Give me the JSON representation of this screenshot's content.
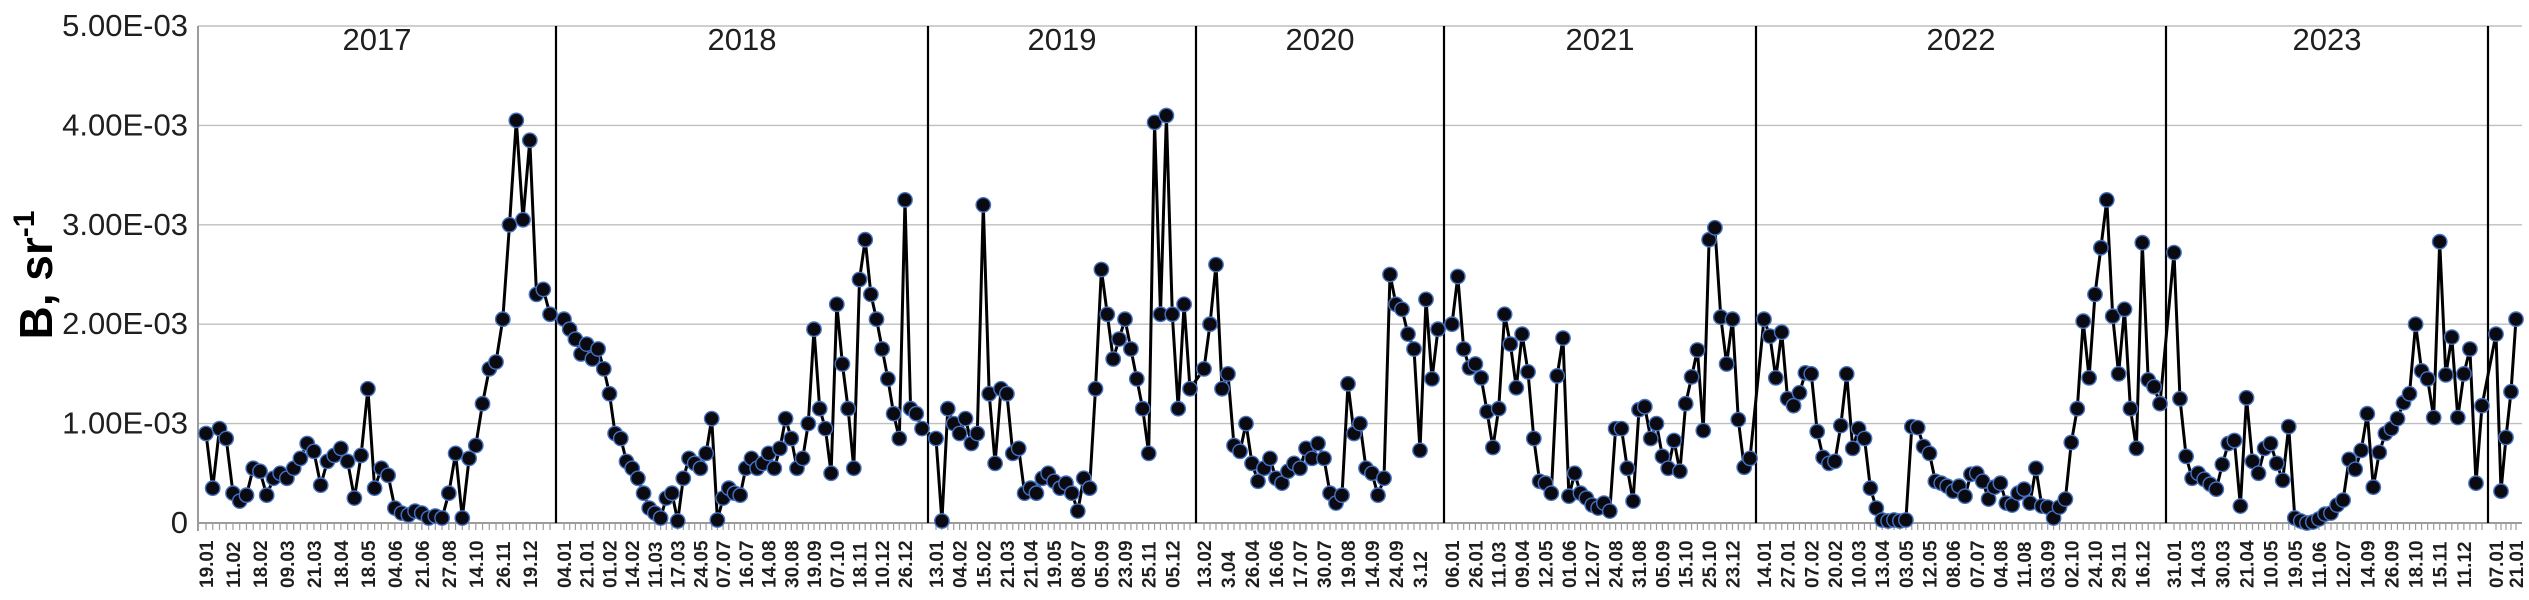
{
  "chart_data": {
    "type": "line",
    "title": "",
    "ylabel": "B, sr",
    "ylabel_superscript": "-1",
    "xlabel": "",
    "legend": "none",
    "grid": "horizontal",
    "value_unit": "1e-3",
    "ylim": [
      "0",
      "5.00E-03"
    ],
    "y_ticks": [
      "5.00E-03",
      "4.00E-03",
      "3.00E-03",
      "2.00E-03",
      "1.00E-03",
      "0"
    ],
    "line_color": "#000000",
    "marker_fill": "#0a0a10",
    "marker_stroke": "#4472c4",
    "grid_color": "#bfbfbf",
    "axis_color": "#9c9c9c",
    "separator_color": "#000000",
    "text_color": "#1f1f1f",
    "years": [
      {
        "label": "2017",
        "x_labels": [
          "19.01",
          "11.02",
          "18.02",
          "09.03",
          "21.03",
          "18.04",
          "18.05",
          "04.06",
          "21.06",
          "27.08",
          "14.10",
          "26.11",
          "19.12"
        ],
        "values": [
          0.9,
          0.35,
          0.95,
          0.85,
          0.3,
          0.22,
          0.28,
          0.55,
          0.52,
          0.28,
          0.45,
          0.5,
          0.45,
          0.55,
          0.65,
          0.8,
          0.72,
          0.38,
          0.62,
          0.68,
          0.75,
          0.62,
          0.25,
          0.68,
          1.35,
          0.35,
          0.55,
          0.48,
          0.15,
          0.1,
          0.08,
          0.12,
          0.1,
          0.05,
          0.07,
          0.05,
          0.3,
          0.7,
          0.05,
          0.65,
          0.78,
          1.2,
          1.55,
          1.62,
          2.05,
          3.0,
          4.05,
          3.05,
          3.85,
          2.3,
          2.35,
          2.1
        ]
      },
      {
        "label": "2018",
        "x_labels": [
          "04.01",
          "21.01",
          "01.02",
          "14.02",
          "11.03",
          "17.03",
          "24.05",
          "07.07",
          "16.07",
          "14.08",
          "30.08",
          "19.09",
          "07.10",
          "18.11",
          "10.12",
          "26.12"
        ],
        "values": [
          2.05,
          1.95,
          1.85,
          1.7,
          1.8,
          1.65,
          1.75,
          1.55,
          1.3,
          0.9,
          0.85,
          0.62,
          0.55,
          0.45,
          0.3,
          0.15,
          0.1,
          0.05,
          0.25,
          0.3,
          0.02,
          0.45,
          0.65,
          0.6,
          0.55,
          0.7,
          1.05,
          0.03,
          0.25,
          0.35,
          0.3,
          0.28,
          0.55,
          0.65,
          0.55,
          0.6,
          0.7,
          0.55,
          0.75,
          1.05,
          0.85,
          0.55,
          0.65,
          1.0,
          1.95,
          1.15,
          0.95,
          0.5,
          2.2,
          1.6,
          1.15,
          0.55,
          2.45,
          2.85,
          2.3,
          2.05,
          1.75,
          1.45,
          1.1,
          0.85,
          3.25,
          1.15,
          1.1,
          0.95
        ]
      },
      {
        "label": "2019",
        "x_labels": [
          "13.01",
          "04.02",
          "15.02",
          "21.03",
          "21.04",
          "19.05",
          "08.07",
          "05.09",
          "23.09",
          "25.11",
          "05.12"
        ],
        "values": [
          0.85,
          0.02,
          1.15,
          1.0,
          0.9,
          1.05,
          0.8,
          0.9,
          3.2,
          1.3,
          0.6,
          1.35,
          1.3,
          0.7,
          0.75,
          0.3,
          0.35,
          0.3,
          0.45,
          0.5,
          0.42,
          0.35,
          0.4,
          0.3,
          0.12,
          0.45,
          0.35,
          1.35,
          2.55,
          2.1,
          1.65,
          1.85,
          2.05,
          1.75,
          1.45,
          1.15,
          0.7,
          4.03,
          2.1,
          4.1,
          2.1,
          1.15,
          2.2,
          1.35
        ]
      },
      {
        "label": "2020",
        "x_labels": [
          "13.02",
          "3.04",
          "26.04",
          "16.06",
          "17.07",
          "30.07",
          "19.08",
          "14.09",
          "24.09",
          "3.12"
        ],
        "values": [
          1.55,
          2.0,
          2.6,
          1.35,
          1.5,
          0.78,
          0.72,
          1.0,
          0.6,
          0.42,
          0.55,
          0.65,
          0.45,
          0.4,
          0.52,
          0.6,
          0.55,
          0.75,
          0.65,
          0.8,
          0.65,
          0.3,
          0.2,
          0.28,
          1.4,
          0.9,
          1.0,
          0.55,
          0.5,
          0.28,
          0.45,
          2.5,
          2.2,
          2.15,
          1.9,
          1.75,
          0.73,
          2.25,
          1.45,
          1.95
        ]
      },
      {
        "label": "2021",
        "x_labels": [
          "06.01",
          "26.01",
          "11.03",
          "09.04",
          "12.05",
          "01.06",
          "12.07",
          "24.08",
          "31.08",
          "05.09",
          "15.10",
          "25.10",
          "23.12"
        ],
        "values": [
          2.0,
          2.48,
          1.75,
          1.56,
          1.6,
          1.46,
          1.12,
          0.76,
          1.15,
          2.1,
          1.8,
          1.36,
          1.9,
          1.52,
          0.85,
          0.42,
          0.4,
          0.3,
          1.48,
          1.86,
          0.27,
          0.5,
          0.3,
          0.25,
          0.18,
          0.15,
          0.2,
          0.12,
          0.95,
          0.95,
          0.55,
          0.22,
          1.14,
          1.17,
          0.85,
          1.0,
          0.67,
          0.55,
          0.83,
          0.52,
          1.2,
          1.47,
          1.74,
          0.93,
          2.85,
          2.97,
          2.07,
          1.6,
          2.05,
          1.04,
          0.56,
          0.65
        ]
      },
      {
        "label": "2022",
        "x_labels": [
          "14.01",
          "27.01",
          "07.02",
          "20.02",
          "10.03",
          "13.04",
          "03.05",
          "12.05",
          "08.06",
          "07.07",
          "04.08",
          "11.08",
          "03.09",
          "02.10",
          "24.10",
          "29.11",
          "16.12"
        ],
        "values": [
          2.05,
          1.88,
          1.46,
          1.92,
          1.25,
          1.18,
          1.31,
          1.51,
          1.5,
          0.92,
          0.66,
          0.6,
          0.62,
          0.98,
          1.5,
          0.75,
          0.95,
          0.85,
          0.35,
          0.15,
          0.03,
          0.02,
          0.03,
          0.02,
          0.03,
          0.97,
          0.96,
          0.77,
          0.7,
          0.42,
          0.4,
          0.37,
          0.32,
          0.37,
          0.27,
          0.49,
          0.5,
          0.42,
          0.24,
          0.36,
          0.4,
          0.2,
          0.18,
          0.3,
          0.34,
          0.2,
          0.55,
          0.17,
          0.16,
          0.05,
          0.16,
          0.24,
          0.81,
          1.15,
          2.03,
          1.46,
          2.3,
          2.77,
          3.25,
          2.08,
          1.5,
          2.15,
          1.15,
          0.75,
          2.82,
          1.44,
          1.37,
          1.2
        ]
      },
      {
        "label": "2023",
        "x_labels": [
          "31.01",
          "14.03",
          "30.03",
          "21.04",
          "10.05",
          "19.05",
          "11.06",
          "12.07",
          "14.09",
          "26.09",
          "18.10",
          "15.11",
          "11.12"
        ],
        "values": [
          2.72,
          1.25,
          0.67,
          0.45,
          0.5,
          0.44,
          0.39,
          0.34,
          0.59,
          0.8,
          0.83,
          0.17,
          1.26,
          0.62,
          0.5,
          0.75,
          0.8,
          0.6,
          0.43,
          0.97,
          0.05,
          0.02,
          0.0,
          0.01,
          0.04,
          0.09,
          0.1,
          0.18,
          0.23,
          0.64,
          0.54,
          0.73,
          1.1,
          0.36,
          0.71,
          0.9,
          0.95,
          1.05,
          1.21,
          1.3,
          2.0,
          1.53,
          1.45,
          1.06,
          2.83,
          1.49,
          1.87,
          1.06,
          1.5,
          1.75,
          0.4,
          1.18
        ]
      },
      {
        "label": "",
        "x_labels": [
          "07.01",
          "21.01"
        ],
        "values": [
          1.9,
          0.32,
          0.86,
          1.32,
          2.05
        ]
      }
    ]
  }
}
